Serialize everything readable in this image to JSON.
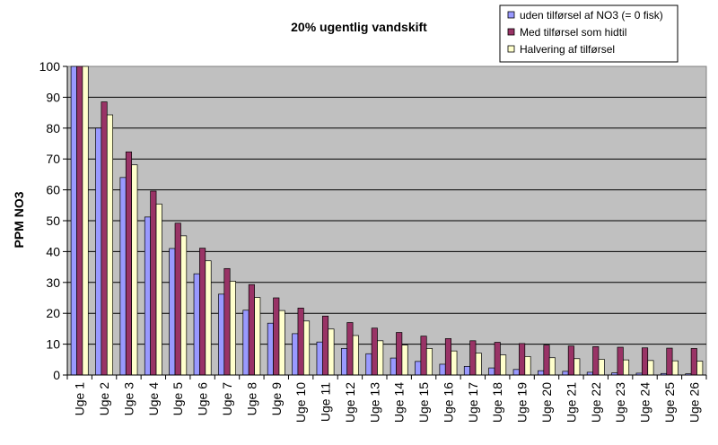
{
  "chart_data": {
    "type": "bar",
    "title": "20% ugentlig vandskift",
    "xlabel": "",
    "ylabel": "PPM NO3",
    "ylim": [
      0,
      100
    ],
    "yticks": [
      0,
      10,
      20,
      30,
      40,
      50,
      60,
      70,
      80,
      90,
      100
    ],
    "grid": true,
    "legend_position": "top-right",
    "categories": [
      "Uge 1",
      "Uge 2",
      "Uge 3",
      "Uge 4",
      "Uge 5",
      "Uge 6",
      "Uge 7",
      "Uge 8",
      "Uge 9",
      "Uge 10",
      "Uge 11",
      "Uge 12",
      "Uge 13",
      "Uge 14",
      "Uge 15",
      "Uge 16",
      "Uge 17",
      "Uge 18",
      "Uge 19",
      "Uge 20",
      "Uge 21",
      "Uge 22",
      "Uge 23",
      "Uge 24",
      "Uge 25",
      "Uge 26"
    ],
    "series": [
      {
        "name": "uden tilførsel af NO3 (= 0 fisk)",
        "color": "#9999ff",
        "values": [
          100,
          80,
          64,
          51.2,
          41,
          32.8,
          26.2,
          21,
          16.8,
          13.4,
          10.7,
          8.6,
          6.9,
          5.5,
          4.4,
          3.5,
          2.8,
          2.3,
          1.8,
          1.4,
          1.2,
          0.9,
          0.7,
          0.6,
          0.5,
          0.4
        ]
      },
      {
        "name": "Med tilførsel som hidtil",
        "color": "#993366",
        "values": [
          100,
          88.5,
          72.3,
          59.6,
          49.2,
          41.1,
          34.5,
          29.3,
          25,
          21.7,
          19.1,
          17,
          15.2,
          13.8,
          12.6,
          11.8,
          11.1,
          10.6,
          10.2,
          9.7,
          9.4,
          9.2,
          9,
          8.8,
          8.7,
          8.6
        ]
      },
      {
        "name": "Halvering af tilførsel",
        "color": "#ffffcc",
        "values": [
          100,
          84.3,
          68.1,
          55.4,
          45.1,
          37,
          30.4,
          25.1,
          20.9,
          17.5,
          14.9,
          12.8,
          11.1,
          9.7,
          8.6,
          7.8,
          7.1,
          6.5,
          6,
          5.6,
          5.3,
          5.1,
          4.9,
          4.7,
          4.6,
          4.5
        ]
      }
    ]
  },
  "colors": {
    "plot_background": "#c0c0c0",
    "gridline": "#000000",
    "page_background": "#ffffff"
  }
}
